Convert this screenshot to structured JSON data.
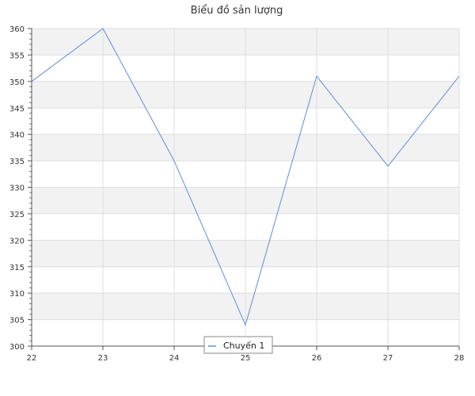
{
  "chart_data": {
    "type": "line",
    "title": "Biểu đồ sản lượng",
    "xlabel": "",
    "ylabel": "",
    "x": [
      22,
      23,
      24,
      25,
      26,
      27,
      28
    ],
    "x_tick_labels": [
      "22",
      "23",
      "24",
      "25",
      "26",
      "27",
      "28"
    ],
    "series": [
      {
        "name": "Chuyến 1",
        "values": [
          350,
          360,
          335,
          304,
          351,
          334,
          351
        ],
        "color": "#5b8fe0"
      }
    ],
    "xlim": [
      22,
      28
    ],
    "ylim": [
      300,
      360
    ],
    "y_ticks": [
      300,
      305,
      310,
      315,
      320,
      325,
      330,
      335,
      340,
      345,
      350,
      355,
      360
    ],
    "y_minor_step": 1,
    "grid": true,
    "band_colors": [
      "#ffffff",
      "#f2f2f2"
    ],
    "legend_position": "bottom-center"
  }
}
